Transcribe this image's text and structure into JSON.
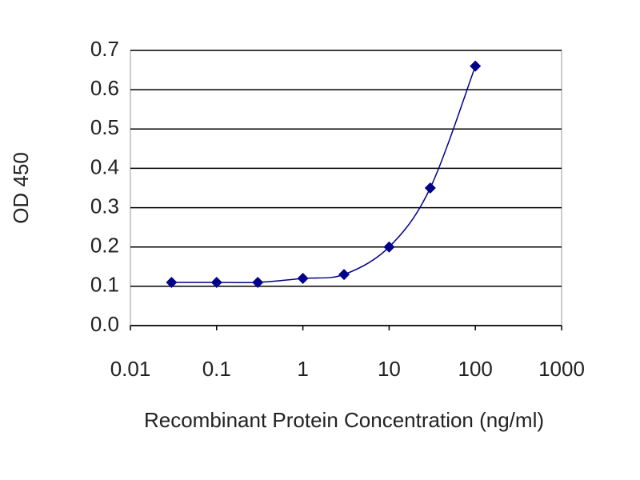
{
  "chart_data": {
    "type": "scatter",
    "x_label": "Recombinant Protein Concentration (ng/ml)",
    "y_label": "OD 450",
    "x": [
      0.03,
      0.1,
      0.3,
      1,
      3,
      10,
      30,
      100
    ],
    "values": [
      0.11,
      0.11,
      0.11,
      0.12,
      0.13,
      0.2,
      0.35,
      0.66
    ],
    "color": "#00008b",
    "xscale": "log",
    "line": "smooth",
    "xlim": [
      0.01,
      1000
    ],
    "xticks": [
      0.01,
      0.1,
      1,
      10,
      100,
      1000
    ],
    "ylim": [
      0,
      0.7
    ],
    "yticks": [
      {
        "value": 0,
        "label": "0.0"
      },
      0.1,
      0.2,
      0.3,
      0.4,
      0.5,
      0.6,
      0.7
    ],
    "grid": true
  }
}
